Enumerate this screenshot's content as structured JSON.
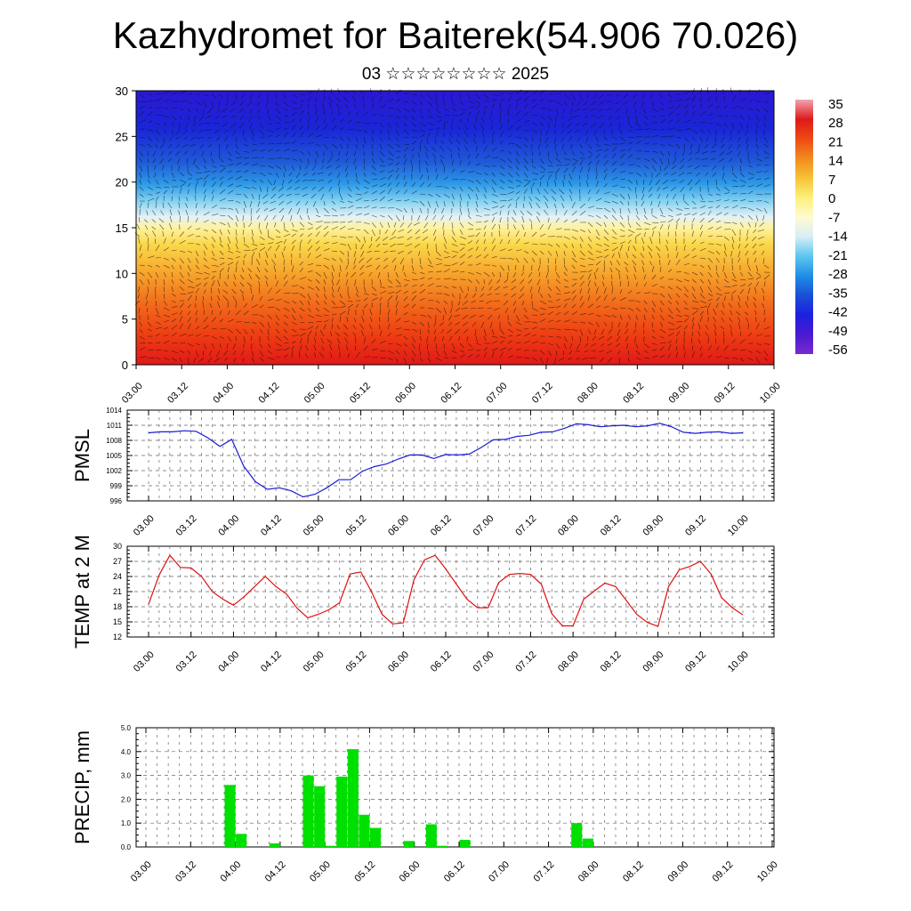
{
  "page": {
    "title": "Kazhydromet for Baiterek(54.906 70.026)",
    "subtitle": "03 ☆☆☆☆☆☆☆☆ 2025"
  },
  "chart_data": [
    {
      "type": "heatmap",
      "ylim": [
        0,
        30
      ],
      "yticks": [
        "0",
        "5",
        "10",
        "15",
        "20",
        "25",
        "30"
      ],
      "xticks": [
        "03.00",
        "03.12",
        "04.00",
        "04.12",
        "05.00",
        "05.12",
        "06.00",
        "06.12",
        "07.00",
        "07.12",
        "08.00",
        "08.12",
        "09.00",
        "09.12",
        "10.00"
      ],
      "colorbar_labels": [
        "35",
        "28",
        "21",
        "14",
        "7",
        "0",
        "-7",
        "-14",
        "-21",
        "-28",
        "-35",
        "-42",
        "-49",
        "-56"
      ],
      "colors": [
        "#f3a3b0",
        "#dd1a1a",
        "#ee4a12",
        "#f28a1e",
        "#f7c234",
        "#fdf07a",
        "#fffbd0",
        "#d8eef6",
        "#5cc6f0",
        "#1f8fe6",
        "#1a4fd6",
        "#1c20e0",
        "#4a1ad2",
        "#7a2ad0"
      ]
    },
    {
      "type": "line",
      "ylabel": "PMSL",
      "ylim": [
        996,
        1014
      ],
      "yticks": [
        "996",
        "999",
        "1002",
        "1005",
        "1008",
        "1011",
        "1014"
      ],
      "xticks": [
        "03.00",
        "03.12",
        "04.00",
        "04.12",
        "05.00",
        "05.12",
        "06.00",
        "06.12",
        "07.00",
        "07.12",
        "08.00",
        "08.12",
        "09.00",
        "09.12",
        "10.00"
      ],
      "color": "#1a1ad8",
      "series": [
        {
          "values": [
            1009.5,
            1009.7,
            1009.7,
            1009.9,
            1009.8,
            1008.5,
            1006.8,
            1008.2,
            1002.9,
            999.8,
            998.3,
            998.6,
            998.0,
            996.8,
            997.3,
            998.6,
            1000.2,
            1000.2,
            1001.9,
            1002.8,
            1003.3,
            1004.3,
            1005.1,
            1005.1,
            1004.4,
            1005.2,
            1005.1,
            1005.3,
            1006.6,
            1008.1,
            1008.2,
            1008.8,
            1009.0,
            1009.6,
            1009.7,
            1010.4,
            1011.3,
            1011.1,
            1010.7,
            1010.9,
            1011.0,
            1010.7,
            1010.9,
            1011.4,
            1010.7,
            1009.6,
            1009.4,
            1009.6,
            1009.7,
            1009.4,
            1009.5
          ]
        }
      ]
    },
    {
      "type": "line",
      "ylabel": "TEMP at 2 M",
      "ylim": [
        12,
        30
      ],
      "yticks": [
        "12",
        "15",
        "18",
        "21",
        "24",
        "27",
        "30"
      ],
      "xticks": [
        "03.00",
        "03.12",
        "04.00",
        "04.12",
        "05.00",
        "05.12",
        "06.00",
        "06.12",
        "07.00",
        "07.12",
        "08.00",
        "08.12",
        "09.00",
        "09.12",
        "10.00"
      ],
      "color": "#e01010",
      "series": [
        {
          "values": [
            18.5,
            24.3,
            28.2,
            25.8,
            25.7,
            24.0,
            21.0,
            19.5,
            18.3,
            20.0,
            22.0,
            24.0,
            22.0,
            20.5,
            17.7,
            15.8,
            16.5,
            17.4,
            18.8,
            24.5,
            24.9,
            21.0,
            16.5,
            14.6,
            14.8,
            23.3,
            27.3,
            28.2,
            25.5,
            22.5,
            19.5,
            17.8,
            17.8,
            22.8,
            24.4,
            24.6,
            24.4,
            22.5,
            16.6,
            14.2,
            14.2,
            19.5,
            21.1,
            22.7,
            22.0,
            19.3,
            16.5,
            14.9,
            14.1,
            22.0,
            25.3,
            26.0,
            27.0,
            24.5,
            19.8,
            17.8,
            16.4
          ]
        }
      ]
    },
    {
      "type": "bar",
      "ylabel": "PRECIP, mm",
      "ylim": [
        0,
        5
      ],
      "yticks": [
        "0.0",
        "1.0",
        "2.0",
        "3.0",
        "4.0",
        "5.0"
      ],
      "xticks": [
        "03.00",
        "03.12",
        "04.00",
        "04.12",
        "05.00",
        "05.12",
        "06.00",
        "06.12",
        "07.00",
        "07.12",
        "08.00",
        "08.12",
        "09.00",
        "09.12",
        "10.00"
      ],
      "color": "#00e000",
      "x_hours": [
        3,
        6,
        9,
        12,
        15,
        18,
        21,
        24,
        27,
        30,
        33,
        36,
        39,
        42,
        45,
        48,
        51,
        54,
        57,
        60,
        63,
        66,
        69,
        72,
        75,
        78,
        81,
        84,
        87,
        90,
        93,
        96,
        99,
        102,
        105,
        108,
        111,
        114,
        117,
        120,
        123,
        126,
        129,
        132,
        135,
        138,
        141,
        144,
        147,
        150,
        153,
        156,
        159,
        162,
        165
      ],
      "values": [
        0,
        0,
        0,
        0,
        0,
        0,
        0,
        2.6,
        0.55,
        0,
        0,
        0.15,
        0,
        0,
        3.0,
        2.55,
        0.05,
        2.95,
        4.1,
        1.35,
        0.8,
        0,
        0,
        0.25,
        0,
        0.95,
        0.05,
        0,
        0.3,
        0,
        0,
        0,
        0,
        0,
        0,
        0,
        0,
        0,
        1.0,
        0.35,
        0,
        0,
        0,
        0,
        0,
        0,
        0,
        0,
        0,
        0,
        0,
        0,
        0,
        0,
        0
      ]
    }
  ]
}
